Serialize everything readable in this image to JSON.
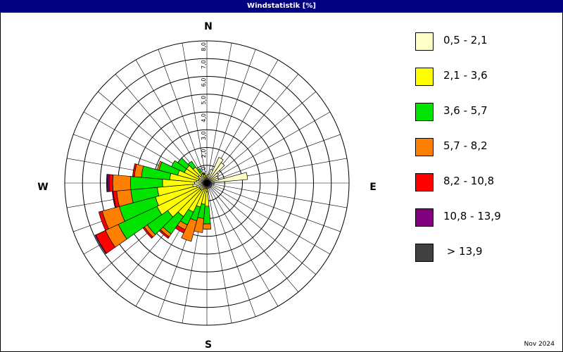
{
  "window": {
    "title": "Windstatistik [%]"
  },
  "footer": {
    "date": "Nov 2024"
  },
  "compass": {
    "north": "N",
    "east": "E",
    "south": "S",
    "west": "W"
  },
  "chart_data": {
    "type": "polar-stacked-bar",
    "title": "Windstatistik [%]",
    "radial_max": 8.0,
    "radial_ticks": [
      "8,0",
      "7,0",
      "6,0",
      "5,0",
      "4,0",
      "3,0",
      "2,0",
      "1,0"
    ],
    "sector_width_deg": 10,
    "classes": [
      {
        "label": "0,5 - 2,1",
        "color": "#ffffc8"
      },
      {
        "label": "2,1 - 3,6",
        "color": "#ffff00"
      },
      {
        "label": "3,6 - 5,7",
        "color": "#00e400"
      },
      {
        "label": "5,7 - 8,2",
        "color": "#ff8000"
      },
      {
        "label": "8,2 - 10,8",
        "color": "#ff0000"
      },
      {
        "label": "10,8 - 13,9",
        "color": "#800080"
      },
      {
        "label": " > 13,9",
        "color": "#404040"
      }
    ],
    "directions": [
      0,
      10,
      20,
      30,
      40,
      50,
      60,
      70,
      80,
      90,
      100,
      110,
      120,
      130,
      140,
      150,
      160,
      170,
      180,
      190,
      200,
      210,
      220,
      230,
      240,
      250,
      260,
      270,
      280,
      290,
      300,
      310,
      320,
      330,
      340,
      350
    ],
    "series": [
      {
        "name": "0,5 - 2,1",
        "values": [
          0.4,
          0.5,
          0.8,
          1.6,
          1.4,
          0.8,
          0.7,
          0.7,
          2.3,
          0.4,
          0.4,
          0.2,
          0.3,
          0.3,
          0.3,
          0.3,
          0.3,
          0.3,
          0.5,
          0.3,
          0.3,
          0.4,
          0.5,
          0.5,
          0.5,
          0.6,
          0.8,
          0.7,
          0.6,
          0.5,
          0.5,
          0.6,
          0.5,
          0.4,
          0.3,
          0.3
        ]
      },
      {
        "name": "2,1 - 3,6",
        "values": [
          0.0,
          0.0,
          0.0,
          0.0,
          0.0,
          0.0,
          0.0,
          0.0,
          0.0,
          0.0,
          0.0,
          0.0,
          0.0,
          0.0,
          0.0,
          0.0,
          0.0,
          0.0,
          0.8,
          0.9,
          1.1,
          1.4,
          1.8,
          2.2,
          2.6,
          2.4,
          2.0,
          1.8,
          1.5,
          1.2,
          0.9,
          0.8,
          0.6,
          0.3,
          0.2,
          0.1
        ]
      },
      {
        "name": "3,6 - 5,7",
        "values": [
          0.0,
          0.0,
          0.0,
          0.0,
          0.0,
          0.0,
          0.0,
          0.0,
          0.0,
          0.0,
          0.0,
          0.0,
          0.0,
          0.0,
          0.0,
          0.0,
          0.0,
          0.0,
          1.0,
          0.8,
          0.8,
          0.8,
          1.2,
          1.4,
          2.4,
          2.1,
          1.5,
          1.8,
          1.6,
          1.1,
          0.8,
          0.6,
          0.4,
          0.2,
          0.1,
          0.0
        ]
      },
      {
        "name": "5,7 - 8,2",
        "values": [
          0.0,
          0.0,
          0.0,
          0.0,
          0.0,
          0.0,
          0.0,
          0.0,
          0.0,
          0.0,
          0.0,
          0.0,
          0.0,
          0.0,
          0.0,
          0.0,
          0.0,
          0.0,
          0.3,
          0.8,
          1.2,
          0.3,
          0.2,
          0.2,
          0.8,
          1.0,
          0.8,
          1.0,
          0.4,
          0.1,
          0.0,
          0.0,
          0.0,
          0.0,
          0.0,
          0.0
        ]
      },
      {
        "name": "8,2 - 10,8",
        "values": [
          0.0,
          0.0,
          0.0,
          0.0,
          0.0,
          0.0,
          0.0,
          0.0,
          0.0,
          0.0,
          0.0,
          0.0,
          0.0,
          0.0,
          0.0,
          0.0,
          0.0,
          0.0,
          0.0,
          0.0,
          0.0,
          0.2,
          0.1,
          0.1,
          0.6,
          0.2,
          0.2,
          0.2,
          0.1,
          0.0,
          0.0,
          0.0,
          0.0,
          0.0,
          0.0,
          0.0
        ]
      },
      {
        "name": "10,8 - 13,9",
        "values": [
          0.0,
          0.0,
          0.0,
          0.0,
          0.0,
          0.0,
          0.0,
          0.0,
          0.0,
          0.0,
          0.0,
          0.0,
          0.0,
          0.0,
          0.0,
          0.0,
          0.0,
          0.0,
          0.0,
          0.0,
          0.0,
          0.0,
          0.0,
          0.0,
          0.05,
          0.0,
          0.05,
          0.1,
          0.0,
          0.0,
          0.0,
          0.0,
          0.0,
          0.0,
          0.0,
          0.0
        ]
      },
      {
        "name": " > 13,9",
        "values": [
          0.0,
          0.0,
          0.0,
          0.0,
          0.0,
          0.0,
          0.0,
          0.0,
          0.0,
          0.0,
          0.0,
          0.0,
          0.0,
          0.0,
          0.0,
          0.0,
          0.0,
          0.0,
          0.0,
          0.0,
          0.0,
          0.0,
          0.0,
          0.0,
          0.0,
          0.0,
          0.0,
          0.05,
          0.0,
          0.0,
          0.0,
          0.0,
          0.0,
          0.0,
          0.0,
          0.0
        ]
      }
    ],
    "grid": true,
    "legend_position": "right"
  }
}
